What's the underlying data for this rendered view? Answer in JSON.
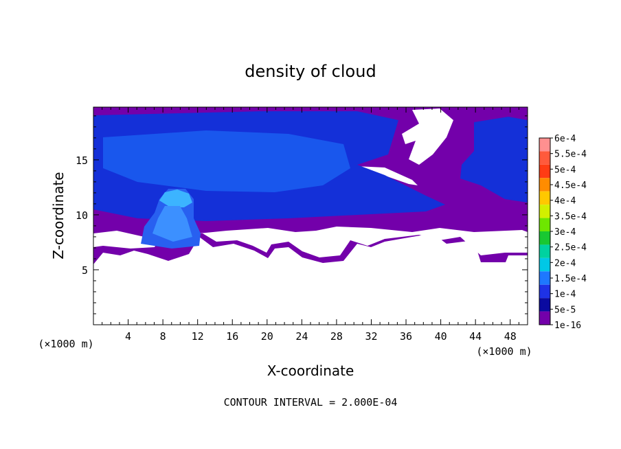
{
  "chart_data": {
    "type": "heatmap",
    "title": "density of cloud",
    "xlabel": "X-coordinate",
    "ylabel": "Z-coordinate",
    "x_units": "(×1000 m)",
    "y_units": "(×1000 m)",
    "xlim": [
      0,
      50
    ],
    "ylim": [
      0,
      19.8
    ],
    "x_ticks": [
      4,
      8,
      12,
      16,
      20,
      24,
      28,
      32,
      36,
      40,
      44,
      48
    ],
    "y_ticks": [
      5,
      10,
      15
    ],
    "footer": "CONTOUR INTERVAL = 2.000E-04",
    "colorbar": {
      "labels": [
        "6e-4",
        "5.5e-4",
        "5e-4",
        "4.5e-4",
        "4e-4",
        "3.5e-4",
        "3e-4",
        "2.5e-4",
        "2e-4",
        "1.5e-4",
        "1e-4",
        "5e-5",
        "1e-16"
      ],
      "colors": [
        "#ff9090",
        "#ff5a3c",
        "#ff3c14",
        "#ff8c00",
        "#ffc800",
        "#d2f000",
        "#6ee600",
        "#19c832",
        "#00d2a0",
        "#00c8e6",
        "#1e78ff",
        "#1e32e6",
        "#0a0aa0",
        "#7300aa"
      ]
    },
    "regions": [
      {
        "level": "1e-16",
        "desc": "band",
        "x": [
          0,
          50
        ],
        "z": [
          5.8,
          19.8
        ]
      },
      {
        "level": "5e-5",
        "x": [
          0,
          40
        ],
        "z": [
          10.5,
          19.5
        ]
      },
      {
        "level": "1e-4",
        "x": [
          1,
          30
        ],
        "z": [
          11.5,
          18.5
        ]
      },
      {
        "level": "1e-4",
        "x": [
          6,
          12
        ],
        "z": [
          7.3,
          12.5
        ]
      },
      {
        "level": "1.5e-4",
        "x": [
          7.8,
          10.5
        ],
        "z": [
          10.5,
          12.4
        ]
      }
    ]
  },
  "colors": {
    "background": "#ffffff",
    "clear_air": "#ffffff"
  }
}
